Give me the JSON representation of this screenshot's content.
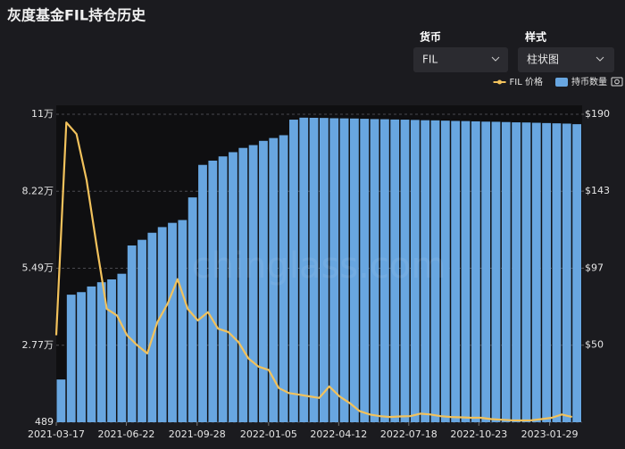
{
  "ui": {
    "currency_label": "货币",
    "currency_value": "FIL",
    "style_label": "样式",
    "style_value": "柱状图"
  },
  "chart_data": {
    "type": "combo",
    "title": "灰度基金FIL持仓历史",
    "watermark": "chinglass.com",
    "legend": "top-right",
    "grid": true,
    "x": [
      "2021-03-17",
      "2021-03-31",
      "2021-04-14",
      "2021-04-28",
      "2021-05-12",
      "2021-05-26",
      "2021-06-09",
      "2021-06-23",
      "2021-07-07",
      "2021-07-21",
      "2021-08-04",
      "2021-08-18",
      "2021-09-01",
      "2021-09-15",
      "2021-09-29",
      "2021-10-13",
      "2021-10-27",
      "2021-11-10",
      "2021-11-24",
      "2021-12-08",
      "2021-12-22",
      "2022-01-05",
      "2022-01-19",
      "2022-02-02",
      "2022-02-16",
      "2022-03-02",
      "2022-03-16",
      "2022-03-30",
      "2022-04-13",
      "2022-04-27",
      "2022-05-11",
      "2022-05-25",
      "2022-06-08",
      "2022-06-22",
      "2022-07-06",
      "2022-07-20",
      "2022-08-03",
      "2022-08-17",
      "2022-08-31",
      "2022-09-14",
      "2022-09-28",
      "2022-10-12",
      "2022-10-26",
      "2022-11-09",
      "2022-11-23",
      "2022-12-07",
      "2022-12-21",
      "2023-01-04",
      "2023-01-18",
      "2023-02-01",
      "2023-02-15",
      "2023-03-01"
    ],
    "xlim": [
      "2021-03-17",
      "2023-03-15"
    ],
    "xticks": [
      "2021-03-17",
      "2021-06-22",
      "2021-09-28",
      "2022-01-05",
      "2022-04-12",
      "2022-07-18",
      "2022-10-23",
      "2023-01-29"
    ],
    "ylim": [
      489,
      109409
    ],
    "yticks": [
      489,
      {
        "value": 27719,
        "label": "2.77万"
      },
      {
        "value": 54949,
        "label": "5.49万"
      },
      {
        "value": 82179,
        "label": "8.22万"
      },
      {
        "value": 109409,
        "label": "11万"
      }
    ],
    "y2lim": [
      3.3,
      190
    ],
    "y2ticks": [
      {
        "value": 50,
        "label": "$50"
      },
      {
        "value": 96.7,
        "label": "$97"
      },
      {
        "value": 143.4,
        "label": "$143"
      },
      {
        "value": 190,
        "label": "$190"
      }
    ],
    "series": [
      {
        "name": "持币数量",
        "type": "bar",
        "axis": "y",
        "color": "#68a6e0",
        "values": [
          15600,
          45600,
          46500,
          48500,
          50000,
          51000,
          53000,
          63000,
          65000,
          67500,
          69500,
          71000,
          72000,
          80000,
          91500,
          93000,
          94500,
          96000,
          97500,
          98500,
          100000,
          101000,
          102000,
          107500,
          108200,
          108150,
          108100,
          108000,
          107950,
          107900,
          107800,
          107700,
          107650,
          107550,
          107500,
          107400,
          107300,
          107250,
          107150,
          107050,
          107000,
          106900,
          106800,
          106750,
          106650,
          106550,
          106500,
          106400,
          106300,
          106200,
          106100,
          105900
        ]
      },
      {
        "name": "FIL 价格",
        "type": "line",
        "axis": "y2",
        "color": "#f2c25c",
        "values": [
          56,
          185,
          178,
          150,
          110,
          72,
          68,
          56,
          50,
          45,
          64,
          75,
          90,
          72,
          65,
          70,
          60,
          58,
          52,
          42,
          37,
          35,
          24,
          21,
          20,
          19,
          18,
          25,
          19,
          15,
          10,
          8,
          7,
          6.5,
          6.8,
          7,
          8.5,
          8,
          7,
          6.5,
          6.3,
          6,
          6,
          5.2,
          4.8,
          4.5,
          4.4,
          4.5,
          5.2,
          6,
          8,
          6.5
        ]
      }
    ]
  }
}
